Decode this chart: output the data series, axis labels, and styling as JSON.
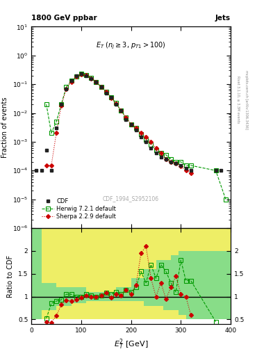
{
  "title_left": "1800 GeV ppbar",
  "title_right": "Jets",
  "watermark": "CDF_1994_S2952106",
  "ylabel_main": "Fraction of events",
  "ylabel_ratio": "Ratio to CDF",
  "xlabel": "E$_{T}^{2}$ [GeV]",
  "right_label1": "Rivet 3.1.10, ≥ 3.3M events",
  "right_label2": "mcplots.cern.ch [arXiv:1306.3436]",
  "xlim": [
    0,
    400
  ],
  "ylim_main": [
    1e-06,
    10
  ],
  "ylim_ratio": [
    0.4,
    2.5
  ],
  "ratio_yticks": [
    0.5,
    1.0,
    1.5,
    2.0
  ],
  "cdf_x": [
    10,
    20,
    30,
    40,
    50,
    60,
    70,
    80,
    90,
    100,
    110,
    120,
    130,
    140,
    150,
    160,
    170,
    180,
    190,
    200,
    210,
    220,
    230,
    240,
    250,
    260,
    270,
    280,
    290,
    300,
    310,
    320,
    370,
    380
  ],
  "cdf_y": [
    0.0001,
    0.0001,
    0.0005,
    0.0001,
    0.003,
    0.02,
    0.07,
    0.13,
    0.2,
    0.23,
    0.2,
    0.16,
    0.12,
    0.08,
    0.05,
    0.035,
    0.02,
    0.012,
    0.006,
    0.004,
    0.0025,
    0.0015,
    0.001,
    0.0006,
    0.0004,
    0.0003,
    0.00025,
    0.0002,
    0.00018,
    0.00015,
    0.00012,
    0.0001,
    0.0001,
    0.0001
  ],
  "herwig_x": [
    30,
    40,
    50,
    60,
    70,
    80,
    90,
    100,
    110,
    120,
    130,
    140,
    150,
    160,
    170,
    180,
    190,
    200,
    210,
    220,
    230,
    240,
    250,
    260,
    270,
    280,
    290,
    300,
    310,
    320,
    370,
    390
  ],
  "herwig_y": [
    0.02,
    0.002,
    0.005,
    0.02,
    0.08,
    0.13,
    0.19,
    0.23,
    0.21,
    0.165,
    0.12,
    0.08,
    0.055,
    0.035,
    0.022,
    0.012,
    0.007,
    0.004,
    0.003,
    0.0018,
    0.0012,
    0.0008,
    0.0005,
    0.0004,
    0.00035,
    0.00025,
    0.0002,
    0.0002,
    0.00015,
    0.00015,
    0.0001,
    1e-05
  ],
  "sherpa_x": [
    30,
    40,
    50,
    60,
    70,
    80,
    90,
    100,
    110,
    120,
    130,
    140,
    150,
    160,
    170,
    180,
    190,
    200,
    210,
    220,
    230,
    240,
    250,
    260,
    270,
    280,
    290,
    300,
    310,
    320
  ],
  "sherpa_y": [
    0.00015,
    0.00015,
    0.002,
    0.018,
    0.07,
    0.12,
    0.185,
    0.225,
    0.205,
    0.16,
    0.12,
    0.08,
    0.055,
    0.034,
    0.021,
    0.012,
    0.007,
    0.004,
    0.003,
    0.002,
    0.0015,
    0.001,
    0.0006,
    0.0004,
    0.00025,
    0.0002,
    0.00018,
    0.00014,
    0.0001,
    8e-05
  ],
  "herwig_ratio_x": [
    30,
    40,
    50,
    60,
    70,
    80,
    90,
    100,
    110,
    120,
    130,
    140,
    150,
    160,
    170,
    180,
    190,
    200,
    210,
    220,
    230,
    240,
    250,
    260,
    270,
    280,
    290,
    300,
    310,
    320,
    370
  ],
  "herwig_ratio_y": [
    0.52,
    0.85,
    0.9,
    0.93,
    1.05,
    1.05,
    1.0,
    1.0,
    1.05,
    1.03,
    1.0,
    1.02,
    1.08,
    1.05,
    1.1,
    1.05,
    1.15,
    1.1,
    1.2,
    1.55,
    1.3,
    1.7,
    1.4,
    1.7,
    1.55,
    1.3,
    1.1,
    1.8,
    1.35,
    1.35,
    0.45
  ],
  "sherpa_ratio_x": [
    30,
    40,
    50,
    60,
    70,
    80,
    90,
    100,
    110,
    120,
    130,
    140,
    150,
    160,
    170,
    180,
    190,
    200,
    210,
    220,
    230,
    240,
    250,
    260,
    270,
    280,
    290,
    300,
    310,
    320
  ],
  "sherpa_ratio_y": [
    0.45,
    0.43,
    0.58,
    0.82,
    0.92,
    0.9,
    0.93,
    0.97,
    1.02,
    1.0,
    1.0,
    1.02,
    1.08,
    0.97,
    1.05,
    1.02,
    1.15,
    1.05,
    1.25,
    1.95,
    2.1,
    1.4,
    1.0,
    1.3,
    0.95,
    1.2,
    1.45,
    1.05,
    1.0,
    0.6
  ],
  "band_x_edges": [
    0,
    20,
    50,
    80,
    110,
    140,
    170,
    200,
    225,
    250,
    265,
    280,
    295,
    310,
    330,
    355,
    400
  ],
  "band_yellow_lo": [
    0.5,
    0.5,
    0.5,
    0.5,
    0.5,
    0.5,
    0.5,
    0.5,
    0.5,
    0.5,
    0.5,
    0.5,
    0.5,
    0.5,
    0.5,
    0.5,
    0.5
  ],
  "band_yellow_hi": [
    2.5,
    2.5,
    2.5,
    2.5,
    2.5,
    2.5,
    2.5,
    2.5,
    2.5,
    2.5,
    2.5,
    2.5,
    2.5,
    2.5,
    2.5,
    2.5,
    2.5
  ],
  "band_green_lo": [
    0.5,
    0.7,
    0.8,
    0.85,
    0.9,
    0.9,
    0.9,
    0.9,
    0.8,
    0.8,
    0.7,
    0.7,
    0.6,
    0.5,
    0.5,
    0.5,
    0.5
  ],
  "band_green_hi": [
    2.5,
    1.3,
    1.2,
    1.2,
    1.1,
    1.1,
    1.2,
    1.4,
    1.6,
    1.8,
    1.8,
    1.9,
    2.0,
    2.0,
    2.0,
    2.0,
    2.0
  ],
  "bg_green": "#88dd88",
  "bg_yellow": "#eeee66",
  "cdf_color": "#222222",
  "herwig_color": "#009900",
  "sherpa_color": "#cc0000"
}
